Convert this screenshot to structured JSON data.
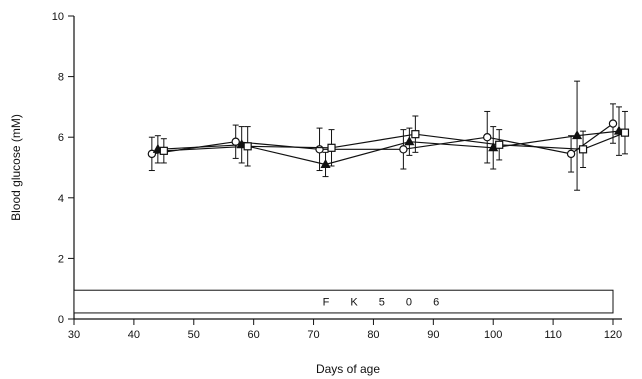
{
  "chart_data": {
    "type": "line",
    "title": "",
    "xlabel": "Days of age",
    "ylabel": "Blood glucose (mM)",
    "xlim": [
      30,
      125
    ],
    "ylim": [
      0,
      10
    ],
    "x_ticks": [
      30,
      40,
      50,
      60,
      70,
      80,
      90,
      100,
      110,
      120
    ],
    "y_ticks": [
      0,
      2,
      4,
      6,
      8,
      10
    ],
    "grid": false,
    "legend": "none",
    "treatment_bar": {
      "label": "F K 5 0 6",
      "x_start": 30,
      "x_end": 120,
      "y_low": 0.2,
      "y_high": 0.95
    },
    "series": [
      {
        "marker": "circle",
        "points": [
          {
            "x": 43,
            "y": 5.45,
            "err": 0.55
          },
          {
            "x": 57,
            "y": 5.85,
            "err": 0.55
          },
          {
            "x": 71,
            "y": 5.6,
            "err": 0.7
          },
          {
            "x": 85,
            "y": 5.6,
            "err": 0.65
          },
          {
            "x": 99,
            "y": 6.0,
            "err": 0.85
          },
          {
            "x": 113,
            "y": 5.45,
            "err": 0.6
          },
          {
            "x": 120,
            "y": 6.45,
            "err": 0.65
          }
        ]
      },
      {
        "marker": "triangle",
        "points": [
          {
            "x": 44,
            "y": 5.6,
            "err": 0.45
          },
          {
            "x": 58,
            "y": 5.75,
            "err": 0.6
          },
          {
            "x": 72,
            "y": 5.1,
            "err": 0.4
          },
          {
            "x": 86,
            "y": 5.85,
            "err": 0.45
          },
          {
            "x": 100,
            "y": 5.65,
            "err": 0.7
          },
          {
            "x": 114,
            "y": 6.05,
            "err": 1.8
          },
          {
            "x": 121,
            "y": 6.2,
            "err": 0.8
          }
        ]
      },
      {
        "marker": "square",
        "points": [
          {
            "x": 45,
            "y": 5.55,
            "err": 0.4
          },
          {
            "x": 59,
            "y": 5.7,
            "err": 0.65
          },
          {
            "x": 73,
            "y": 5.65,
            "err": 0.6
          },
          {
            "x": 87,
            "y": 6.1,
            "err": 0.6
          },
          {
            "x": 101,
            "y": 5.75,
            "err": 0.5
          },
          {
            "x": 115,
            "y": 5.6,
            "err": 0.6
          },
          {
            "x": 122,
            "y": 6.15,
            "err": 0.7
          }
        ]
      }
    ]
  }
}
